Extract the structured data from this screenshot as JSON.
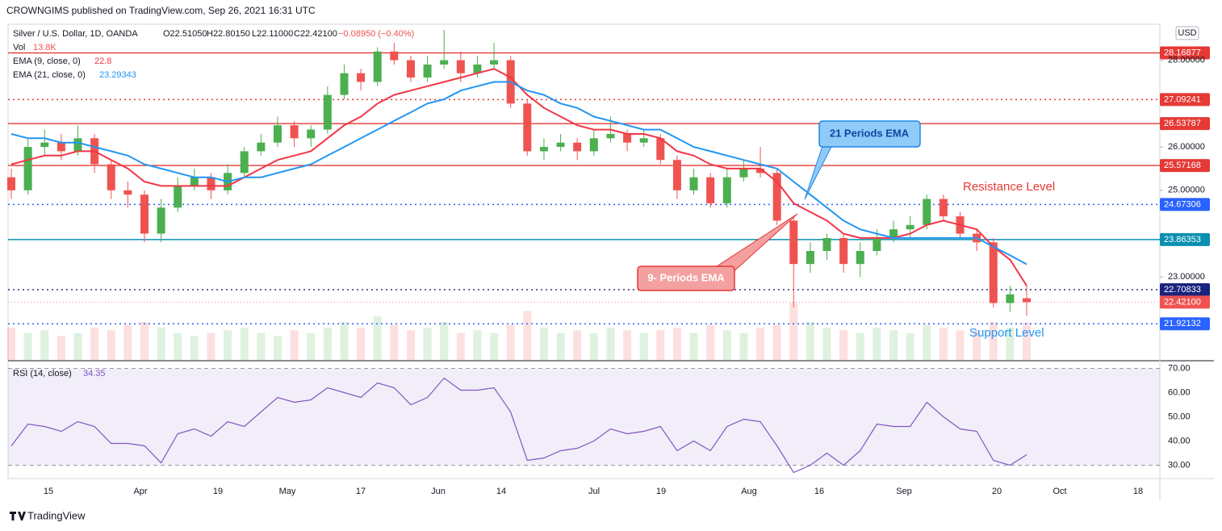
{
  "header": "CROWNGIMS published on TradingView.com, Sep 26, 2021 16:31 UTC",
  "footer": "TradingView",
  "chart_data": {
    "type": "candlestick",
    "symbol": "Silver / U.S. Dollar, 1D, OANDA",
    "open_label": "O22.51050",
    "high_label": "H22.80150",
    "low_label": "L22.11000",
    "close_label": "C22.42100",
    "change_label": "−0.08950 (−0.40%)",
    "vol_label": "Vol",
    "vol_value": "13.8K",
    "ema9_label": "EMA (9, close, 0)",
    "ema9_value": "22.8",
    "ema21_label": "EMA (21, close, 0)",
    "ema21_value": "23.29343",
    "currency": "USD",
    "up_color": "#4caf50",
    "down_color": "#ef5350",
    "ylim": [
      21.07,
      28.83
    ],
    "yticks": [
      {
        "value": 23,
        "label": "23.00000"
      },
      {
        "value": 25,
        "label": "25.00000"
      },
      {
        "value": 26,
        "label": "26.00000"
      },
      {
        "value": 28,
        "label": "28.00000"
      }
    ],
    "xticks": [
      "15",
      "Apr",
      "19",
      "May",
      "17",
      "Jun",
      "14",
      "Jul",
      "19",
      "Aug",
      "16",
      "Sep",
      "20",
      "Oct",
      "18"
    ],
    "candles": [
      [
        25.3,
        25.5,
        24.8,
        25.0
      ],
      [
        25.0,
        26.2,
        24.9,
        26.0
      ],
      [
        26.0,
        26.4,
        25.8,
        26.1
      ],
      [
        26.1,
        26.3,
        25.7,
        25.9
      ],
      [
        25.9,
        26.5,
        25.8,
        26.2
      ],
      [
        26.2,
        26.3,
        25.4,
        25.6
      ],
      [
        25.6,
        25.7,
        24.8,
        25.0
      ],
      [
        25.0,
        25.2,
        24.6,
        24.9
      ],
      [
        24.9,
        25.0,
        23.8,
        24.0
      ],
      [
        24.0,
        24.8,
        23.8,
        24.6
      ],
      [
        24.6,
        25.3,
        24.5,
        25.1
      ],
      [
        25.1,
        25.5,
        25.0,
        25.3
      ],
      [
        25.3,
        25.4,
        24.8,
        25.0
      ],
      [
        25.0,
        25.6,
        24.9,
        25.4
      ],
      [
        25.4,
        26.0,
        25.3,
        25.9
      ],
      [
        25.9,
        26.3,
        25.8,
        26.1
      ],
      [
        26.1,
        26.7,
        26.0,
        26.5
      ],
      [
        26.5,
        26.6,
        26.0,
        26.2
      ],
      [
        26.2,
        26.5,
        26.0,
        26.4
      ],
      [
        26.4,
        27.4,
        26.3,
        27.2
      ],
      [
        27.2,
        27.9,
        27.1,
        27.7
      ],
      [
        27.7,
        27.8,
        27.3,
        27.5
      ],
      [
        27.5,
        28.3,
        27.4,
        28.2
      ],
      [
        28.2,
        28.4,
        27.9,
        28.0
      ],
      [
        28.0,
        28.1,
        27.5,
        27.6
      ],
      [
        27.6,
        28.1,
        27.5,
        27.9
      ],
      [
        27.9,
        28.7,
        27.8,
        28.0
      ],
      [
        28.0,
        28.2,
        27.5,
        27.7
      ],
      [
        27.7,
        28.1,
        27.6,
        27.9
      ],
      [
        27.9,
        28.4,
        27.8,
        28.0
      ],
      [
        28.0,
        28.1,
        26.9,
        27.0
      ],
      [
        27.0,
        27.1,
        25.8,
        25.9
      ],
      [
        25.9,
        26.2,
        25.7,
        26.0
      ],
      [
        26.0,
        26.3,
        25.9,
        26.1
      ],
      [
        26.1,
        26.2,
        25.7,
        25.9
      ],
      [
        25.9,
        26.4,
        25.8,
        26.2
      ],
      [
        26.2,
        26.7,
        26.1,
        26.3
      ],
      [
        26.3,
        26.4,
        25.9,
        26.1
      ],
      [
        26.1,
        26.4,
        26.0,
        26.2
      ],
      [
        26.2,
        26.3,
        25.6,
        25.7
      ],
      [
        25.7,
        25.8,
        24.8,
        25.0
      ],
      [
        25.0,
        25.5,
        24.9,
        25.3
      ],
      [
        25.3,
        25.4,
        24.6,
        24.7
      ],
      [
        24.7,
        25.5,
        24.6,
        25.3
      ],
      [
        25.3,
        25.7,
        25.2,
        25.5
      ],
      [
        25.5,
        26.0,
        25.3,
        25.4
      ],
      [
        25.4,
        25.5,
        24.2,
        24.3
      ],
      [
        24.3,
        24.4,
        22.3,
        23.3
      ],
      [
        23.3,
        23.8,
        23.1,
        23.6
      ],
      [
        23.6,
        24.0,
        23.4,
        23.9
      ],
      [
        23.9,
        24.0,
        23.1,
        23.3
      ],
      [
        23.3,
        23.8,
        23.0,
        23.6
      ],
      [
        23.6,
        24.1,
        23.5,
        23.9
      ],
      [
        23.9,
        24.3,
        23.8,
        24.1
      ],
      [
        24.1,
        24.4,
        23.9,
        24.2
      ],
      [
        24.2,
        24.9,
        24.1,
        24.8
      ],
      [
        24.8,
        24.9,
        24.3,
        24.4
      ],
      [
        24.4,
        24.5,
        23.9,
        24.0
      ],
      [
        24.0,
        24.1,
        23.6,
        23.8
      ],
      [
        23.8,
        23.9,
        22.3,
        22.4
      ],
      [
        22.4,
        22.8,
        22.2,
        22.6
      ],
      [
        22.51,
        22.8,
        22.11,
        22.42
      ]
    ],
    "volume": [
      12,
      10,
      11,
      9,
      10,
      12,
      11,
      13,
      14,
      12,
      10,
      9,
      10,
      11,
      12,
      10,
      9,
      11,
      10,
      12,
      14,
      12,
      16,
      13,
      11,
      12,
      14,
      10,
      11,
      10,
      13,
      18,
      12,
      10,
      11,
      10,
      12,
      11,
      10,
      11,
      12,
      10,
      13,
      11,
      10,
      12,
      13,
      21,
      14,
      12,
      11,
      10,
      12,
      11,
      10,
      13,
      12,
      11,
      11,
      14,
      12,
      13.8
    ],
    "series": [
      {
        "name": "EMA 9",
        "color": "#f23645",
        "values": [
          25.6,
          25.7,
          25.8,
          25.8,
          25.9,
          25.9,
          25.7,
          25.5,
          25.2,
          25.1,
          25.1,
          25.1,
          25.1,
          25.1,
          25.3,
          25.5,
          25.7,
          25.8,
          25.9,
          26.2,
          26.5,
          26.7,
          27.0,
          27.2,
          27.3,
          27.4,
          27.5,
          27.6,
          27.7,
          27.8,
          27.6,
          27.2,
          26.9,
          26.7,
          26.5,
          26.4,
          26.4,
          26.3,
          26.3,
          26.2,
          25.9,
          25.8,
          25.6,
          25.5,
          25.5,
          25.5,
          25.2,
          24.7,
          24.5,
          24.3,
          24.0,
          23.9,
          23.9,
          23.9,
          24.0,
          24.2,
          24.3,
          24.2,
          24.1,
          23.7,
          23.4,
          22.8
        ]
      },
      {
        "name": "EMA 21",
        "color": "#2196f3",
        "values": [
          26.3,
          26.2,
          26.2,
          26.1,
          26.1,
          26.0,
          25.9,
          25.8,
          25.6,
          25.5,
          25.4,
          25.3,
          25.3,
          25.2,
          25.3,
          25.3,
          25.4,
          25.5,
          25.6,
          25.8,
          26.0,
          26.2,
          26.4,
          26.6,
          26.8,
          27.0,
          27.1,
          27.3,
          27.4,
          27.5,
          27.5,
          27.3,
          27.2,
          27.0,
          26.9,
          26.7,
          26.6,
          26.5,
          26.4,
          26.4,
          26.2,
          26.0,
          25.9,
          25.8,
          25.7,
          25.6,
          25.5,
          25.2,
          24.9,
          24.6,
          24.3,
          24.1,
          24.0,
          23.9,
          23.9,
          23.9,
          23.9,
          23.9,
          23.9,
          23.7,
          23.5,
          23.29343
        ]
      }
    ],
    "levels": [
      {
        "value": 28.16877,
        "color": "#e53935",
        "style": "solid"
      },
      {
        "value": 27.09241,
        "color": "#e53935",
        "style": "dotted"
      },
      {
        "value": 26.53787,
        "color": "#e53935",
        "style": "solid"
      },
      {
        "value": 25.57168,
        "color": "#e53935",
        "style": "solid"
      },
      {
        "value": 24.67306,
        "color": "#2962ff",
        "style": "dotted"
      },
      {
        "value": 23.86353,
        "color": "#0a8fb0",
        "style": "solid"
      },
      {
        "value": 22.70833,
        "color": "#1a237e",
        "style": "dotted"
      },
      {
        "value": {
          "value": 22.421,
          "label": "22.42100"
        },
        "color": "#ef5350",
        "style": "faint"
      },
      {
        "value": 21.92132,
        "color": "#2962ff",
        "style": "dotted"
      }
    ],
    "annotations": {
      "ema21": "21 Periods EMA",
      "ema9": "9- Periods EMA",
      "resistance": "Resistance Level",
      "support": "Support Level"
    },
    "rsi": {
      "label": "RSI (14, close)",
      "value_label": "34.35",
      "color": "#7e57c2",
      "ylim": [
        24.5,
        72.5
      ],
      "yticks": [
        {
          "value": 30,
          "label": "30.00"
        },
        {
          "value": 40,
          "label": "40.00"
        },
        {
          "value": 50,
          "label": "50.00"
        },
        {
          "value": 60,
          "label": "60.00"
        },
        {
          "value": 70,
          "label": "70.00"
        }
      ],
      "values": [
        38,
        47,
        46,
        44,
        48,
        46,
        39,
        39,
        38,
        31,
        43,
        45,
        42,
        48,
        46,
        52,
        58,
        56,
        57,
        62,
        60,
        58,
        64,
        62,
        55,
        58,
        66,
        61,
        61,
        62,
        52,
        32,
        33,
        36,
        37,
        40,
        45,
        43,
        44,
        46,
        36,
        40,
        36,
        46,
        49,
        48,
        38,
        27,
        30,
        35,
        30,
        36,
        47,
        46,
        46,
        56,
        50,
        45,
        44,
        32,
        30,
        34.35
      ]
    }
  }
}
